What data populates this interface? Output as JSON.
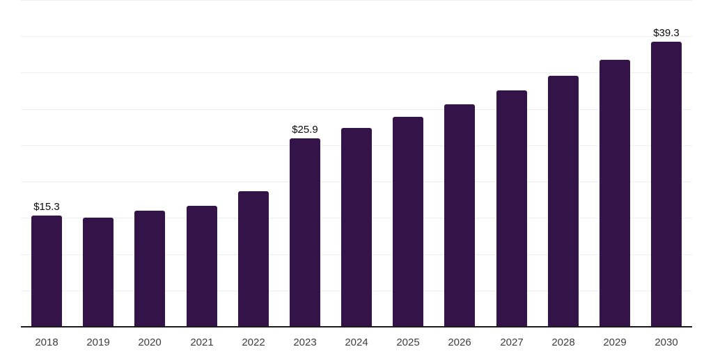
{
  "chart_data": {
    "type": "bar",
    "title": "",
    "xlabel": "",
    "ylabel": "",
    "categories": [
      "2018",
      "2019",
      "2020",
      "2021",
      "2022",
      "2023",
      "2024",
      "2025",
      "2026",
      "2027",
      "2028",
      "2029",
      "2030"
    ],
    "values": [
      15.3,
      15.0,
      16.0,
      16.7,
      18.7,
      25.9,
      27.4,
      28.9,
      30.6,
      32.6,
      34.6,
      36.8,
      39.3
    ],
    "value_labels": {
      "2018": "$15.3",
      "2023": "$25.9",
      "2030": "$39.3"
    },
    "ylim": [
      0,
      45
    ],
    "gridline_step": 5,
    "grid": true,
    "legend": false,
    "y_axis_labels_visible": false,
    "unit_prefix": "$"
  },
  "colors": {
    "bar": "#341349",
    "gridline": "#eeeeee",
    "axis_line": "#1b1b1b",
    "tick_label": "#3d3d3d",
    "value_label": "#0a0a0a",
    "background": "#ffffff"
  }
}
